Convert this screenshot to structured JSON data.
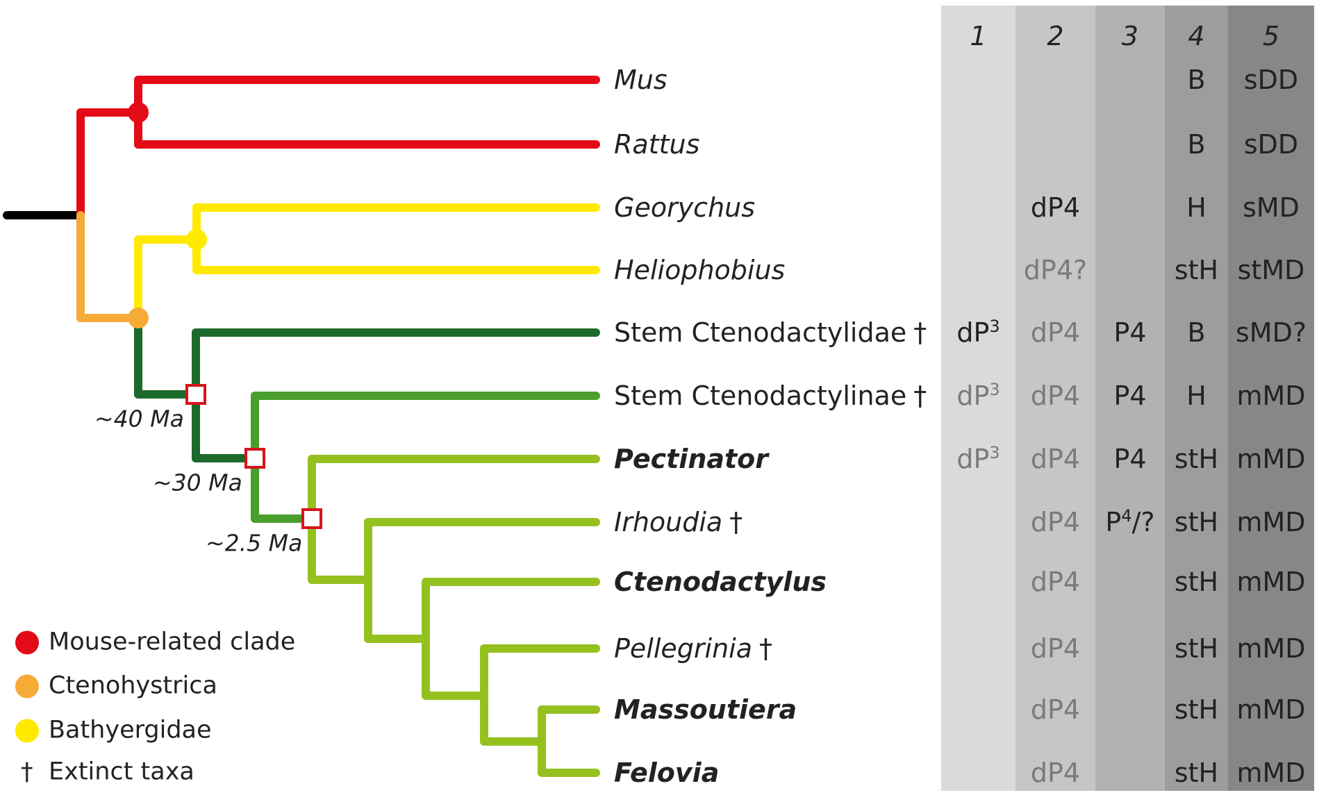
{
  "colors": {
    "root": "#000000",
    "mouse": "#e30b17",
    "ctenohystrica": "#f5ab35",
    "bathyergidae": "#ffea00",
    "stem_ctenodactylidae": "#1c6a2b",
    "stem_ctenodactylinae": "#4a9e2b",
    "crown_ctenodactylinae": "#95c11f",
    "event_box": "#d6141d",
    "text": "#222222",
    "text_grey": "#7a7a7a"
  },
  "taxa": [
    {
      "name": "Mus",
      "extinct": false,
      "style": "italic"
    },
    {
      "name": "Rattus",
      "extinct": false,
      "style": "italic"
    },
    {
      "name": "Georychus",
      "extinct": false,
      "style": "italic"
    },
    {
      "name": "Heliophobius",
      "extinct": false,
      "style": "italic"
    },
    {
      "name": "Stem Ctenodactylidae",
      "extinct": true,
      "style": "upright"
    },
    {
      "name": "Stem Ctenodactylinae",
      "extinct": true,
      "style": "upright"
    },
    {
      "name": "Pectinator",
      "extinct": false,
      "style": "bold"
    },
    {
      "name": "Irhoudia",
      "extinct": true,
      "style": "italic"
    },
    {
      "name": "Ctenodactylus",
      "extinct": false,
      "style": "bold"
    },
    {
      "name": "Pellegrinia",
      "extinct": true,
      "style": "italic"
    },
    {
      "name": "Massoutiera",
      "extinct": false,
      "style": "bold"
    },
    {
      "name": "Felovia",
      "extinct": false,
      "style": "bold"
    }
  ],
  "dagger": "†",
  "ages": [
    "~40 Ma",
    "~30 Ma",
    "~2.5 Ma"
  ],
  "matrix": {
    "headers": [
      "1",
      "2",
      "3",
      "4",
      "5"
    ],
    "column_shades": [
      "#dadadb",
      "#c6c6c7",
      "#b2b2b3",
      "#9d9d9e",
      "#878787"
    ],
    "rows": [
      [
        "",
        "",
        "",
        "B",
        "sDD"
      ],
      [
        "",
        "",
        "",
        "B",
        "sDD"
      ],
      [
        "",
        "dP4",
        "",
        "H",
        "sMD"
      ],
      [
        "",
        "dP4?",
        "",
        "stH",
        "stMD"
      ],
      [
        "dP3",
        "dP4",
        "P4",
        "B",
        "sMD?"
      ],
      [
        "dP3",
        "dP4",
        "P4",
        "H",
        "mMD"
      ],
      [
        "dP3",
        "dP4",
        "P4",
        "stH",
        "mMD"
      ],
      [
        "",
        "dP4",
        "P4/?",
        "stH",
        "mMD"
      ],
      [
        "",
        "dP4",
        "",
        "stH",
        "mMD"
      ],
      [
        "",
        "dP4",
        "",
        "stH",
        "mMD"
      ],
      [
        "",
        "dP4",
        "",
        "stH",
        "mMD"
      ],
      [
        "",
        "dP4",
        "",
        "stH",
        "mMD"
      ]
    ],
    "grey_cells": [
      [
        3,
        1
      ],
      [
        4,
        1
      ],
      [
        5,
        0
      ],
      [
        5,
        1
      ],
      [
        6,
        0
      ],
      [
        6,
        1
      ],
      [
        7,
        1
      ],
      [
        8,
        1
      ],
      [
        9,
        1
      ],
      [
        10,
        1
      ],
      [
        11,
        1
      ]
    ]
  },
  "legend": [
    {
      "label": "Mouse-related clade",
      "color": "#e30b17"
    },
    {
      "label": "Ctenohystrica",
      "color": "#f5ab35"
    },
    {
      "label": "Bathyergidae",
      "color": "#ffea00"
    },
    {
      "label": "Extinct taxa",
      "symbol": "†"
    }
  ]
}
